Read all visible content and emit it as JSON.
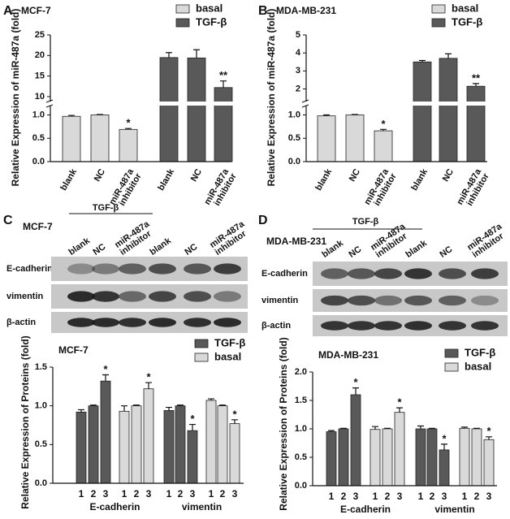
{
  "panel_labels": [
    "A",
    "B",
    "C",
    "D"
  ],
  "chart_data": [
    {
      "type": "bar",
      "title": "MCF-7",
      "ylabel": "Relative Expression of miR-487a (fold)",
      "categories": [
        "blank",
        "NC",
        "miR-487a inhibitor",
        "blank",
        "NC",
        "miR-487a inhibitor"
      ],
      "series": [
        {
          "name": "basal",
          "color": "#d9d9d9",
          "values": [
            0.97,
            1.0,
            0.69,
            null,
            null,
            null
          ],
          "errors": [
            0.02,
            0.01,
            0.02,
            null,
            null,
            null
          ],
          "significance": [
            null,
            null,
            "*",
            null,
            null,
            null
          ]
        },
        {
          "name": "TGF-β",
          "color": "#595959",
          "values": [
            null,
            null,
            null,
            19.5,
            19.4,
            12.2
          ],
          "errors": [
            null,
            null,
            null,
            1.2,
            2.0,
            1.6
          ],
          "significance": [
            null,
            null,
            null,
            null,
            null,
            "**"
          ]
        }
      ],
      "ylim": [
        0,
        1.2
      ],
      "yticks": [
        {
          "value": 0,
          "label": "0.0"
        },
        0.5,
        {
          "value": 1,
          "label": "1.0"
        }
      ],
      "upper_ylim": [
        8.8,
        25
      ],
      "upper_yticks": [
        10,
        15,
        20,
        25
      ]
    },
    {
      "type": "bar",
      "title": "MDA-MB-231",
      "ylabel": "Relative Expression of miR-487a (fold)",
      "categories": [
        "blank",
        "NC",
        "miR-487a inhibitor",
        "blank",
        "NC",
        "miR-487a inhibitor"
      ],
      "series": [
        {
          "name": "basal",
          "color": "#d9d9d9",
          "values": [
            0.98,
            1.0,
            0.66,
            null,
            null,
            null
          ],
          "errors": [
            0.02,
            0.01,
            0.03,
            null,
            null,
            null
          ],
          "significance": [
            null,
            null,
            "*",
            null,
            null,
            null
          ]
        },
        {
          "name": "TGF-β",
          "color": "#595959",
          "values": [
            null,
            null,
            null,
            3.5,
            3.7,
            2.15
          ],
          "errors": [
            null,
            null,
            null,
            0.08,
            0.25,
            0.15
          ],
          "significance": [
            null,
            null,
            null,
            null,
            null,
            "**"
          ]
        }
      ],
      "ylim": [
        0,
        1.2
      ],
      "yticks": [
        {
          "value": 0,
          "label": "0.0"
        },
        0.5,
        {
          "value": 1,
          "label": "1.0"
        }
      ],
      "upper_ylim": [
        1.3,
        5
      ],
      "upper_yticks": [
        2,
        3,
        4,
        5
      ]
    },
    {
      "type": "bar",
      "title": "MCF-7",
      "ylabel": "Relative Expression of Proteins (fold)",
      "categories": [
        "1",
        "2",
        "3",
        "1",
        "2",
        "3",
        "1",
        "2",
        "3",
        "1",
        "2",
        "3"
      ],
      "groups": [
        "E-cadherin",
        "vimentin"
      ],
      "series": [
        {
          "name": "TGF-β",
          "color": "#595959",
          "values": [
            0.92,
            1.0,
            1.32,
            null,
            null,
            null,
            0.94,
            1.0,
            0.68,
            null,
            null,
            null
          ],
          "errors": [
            0.03,
            0.01,
            0.08,
            null,
            null,
            null,
            0.04,
            0.01,
            0.08,
            null,
            null,
            null
          ],
          "significance": [
            null,
            null,
            "*",
            null,
            null,
            null,
            null,
            null,
            "*",
            null,
            null,
            null
          ]
        },
        {
          "name": "basal",
          "color": "#d9d9d9",
          "values": [
            null,
            null,
            null,
            0.93,
            1.0,
            1.22,
            null,
            null,
            null,
            1.07,
            1.0,
            0.77
          ],
          "errors": [
            null,
            null,
            null,
            0.07,
            0.01,
            0.08,
            null,
            null,
            null,
            0.02,
            0.01,
            0.05
          ],
          "significance": [
            null,
            null,
            null,
            null,
            null,
            "*",
            null,
            null,
            null,
            null,
            null,
            "*"
          ]
        }
      ],
      "ylim": [
        0,
        1.5
      ],
      "yticks": [
        {
          "value": 0,
          "label": "0.0"
        },
        0.5,
        {
          "value": 1,
          "label": "1.0"
        },
        1.5
      ]
    },
    {
      "type": "bar",
      "title": "MDA-MB-231",
      "ylabel": "Relative Expression of Proteins (fold)",
      "categories": [
        "1",
        "2",
        "3",
        "1",
        "2",
        "3",
        "1",
        "2",
        "3",
        "1",
        "2",
        "3"
      ],
      "groups": [
        "E-cadherin",
        "vimentin"
      ],
      "series": [
        {
          "name": "TGF-β",
          "color": "#595959",
          "values": [
            0.95,
            1.0,
            1.6,
            null,
            null,
            null,
            1.0,
            1.0,
            0.63,
            null,
            null,
            null
          ],
          "errors": [
            0.02,
            0.01,
            0.12,
            null,
            null,
            null,
            0.05,
            0.01,
            0.1,
            null,
            null,
            null
          ],
          "significance": [
            null,
            null,
            "*",
            null,
            null,
            null,
            null,
            null,
            "*",
            null,
            null,
            null
          ]
        },
        {
          "name": "basal",
          "color": "#d9d9d9",
          "values": [
            null,
            null,
            null,
            0.99,
            1.0,
            1.29,
            null,
            null,
            null,
            1.01,
            1.0,
            0.81
          ],
          "errors": [
            null,
            null,
            null,
            0.05,
            0.01,
            0.08,
            null,
            null,
            null,
            0.02,
            0.01,
            0.05
          ],
          "significance": [
            null,
            null,
            null,
            null,
            null,
            "*",
            null,
            null,
            null,
            null,
            null,
            "*"
          ]
        }
      ],
      "ylim": [
        0,
        2
      ],
      "yticks": [
        {
          "value": 0,
          "label": "0.0"
        },
        0.5,
        {
          "value": 1,
          "label": "1.0"
        },
        1.5,
        {
          "value": 2,
          "label": "2.0"
        }
      ]
    }
  ],
  "blots": [
    {
      "title": "MCF-7",
      "treatment": "TGF-β",
      "lanes": [
        "blank",
        "NC",
        "miR-487a inhibitor",
        "blank",
        "NC",
        "miR-487a inhibitor"
      ],
      "rows": [
        "E-cadherin",
        "vimentin",
        "β-actin"
      ]
    },
    {
      "title": "MDA-MB-231",
      "treatment": "TGF-β",
      "lanes": [
        "blank",
        "NC",
        "miR-487a inhibitor",
        "blank",
        "NC",
        "miR-487a inhibitor"
      ],
      "rows": [
        "E-cadherin",
        "vimentin",
        "β-actin"
      ]
    }
  ]
}
